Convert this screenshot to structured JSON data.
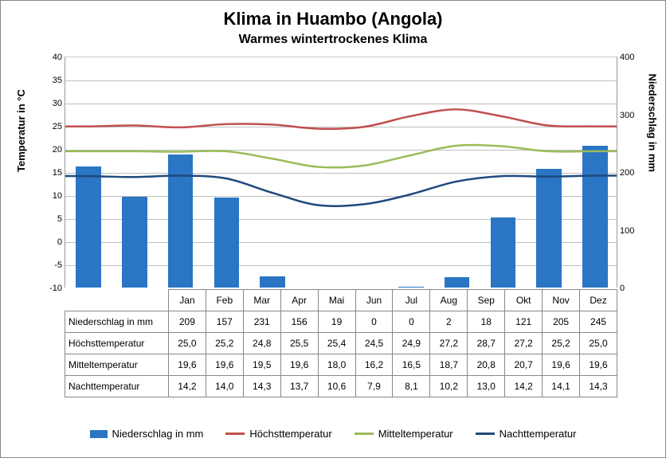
{
  "title": "Klima in Huambo (Angola)",
  "subtitle": "Warmes wintertrockenes Klima",
  "leftAxis": {
    "label": "Temperatur in °C",
    "min": -10,
    "max": 40,
    "step": 5,
    "fontsize": 13
  },
  "rightAxis": {
    "label": "Niederschlag in mm",
    "min": 0,
    "max": 400,
    "step": 100,
    "fontsize": 13
  },
  "months": [
    "Jan",
    "Feb",
    "Mar",
    "Apr",
    "Mai",
    "Jun",
    "Jul",
    "Aug",
    "Sep",
    "Okt",
    "Nov",
    "Dez"
  ],
  "series": {
    "niederschlag": {
      "label": "Niederschlag in mm",
      "type": "bar",
      "color": "#2a75c4",
      "axis": "right",
      "values": [
        209,
        157,
        231,
        156,
        19,
        0,
        0,
        2,
        18,
        121,
        205,
        245
      ]
    },
    "hoechst": {
      "label": "Höchsttemperatur",
      "type": "line",
      "color": "#c0504d",
      "axis": "left",
      "lineWidth": 2.5,
      "values": [
        25.0,
        25.2,
        24.8,
        25.5,
        25.4,
        24.5,
        24.9,
        27.2,
        28.7,
        27.2,
        25.2,
        25.0
      ]
    },
    "mittel": {
      "label": "Mitteltemperatur",
      "type": "line",
      "color": "#9bbb59",
      "axis": "left",
      "lineWidth": 2.5,
      "values": [
        19.6,
        19.6,
        19.5,
        19.6,
        18.0,
        16.2,
        16.5,
        18.7,
        20.8,
        20.7,
        19.6,
        19.6
      ]
    },
    "nacht": {
      "label": "Nachttemperatur",
      "type": "line",
      "color": "#1f497d",
      "axis": "left",
      "lineWidth": 2.5,
      "values": [
        14.2,
        14.0,
        14.3,
        13.7,
        10.6,
        7.9,
        8.1,
        10.2,
        13.0,
        14.2,
        14.1,
        14.3
      ]
    }
  },
  "tableRows": [
    "niederschlag",
    "hoechst",
    "mittel",
    "nacht"
  ],
  "legendOrder": [
    "niederschlag",
    "hoechst",
    "mittel",
    "nacht"
  ],
  "colors": {
    "grid": "#bfbfbf",
    "border": "#888888",
    "background": "#ffffff"
  },
  "barWidthFrac": 0.55,
  "plotHeightPx": 290
}
